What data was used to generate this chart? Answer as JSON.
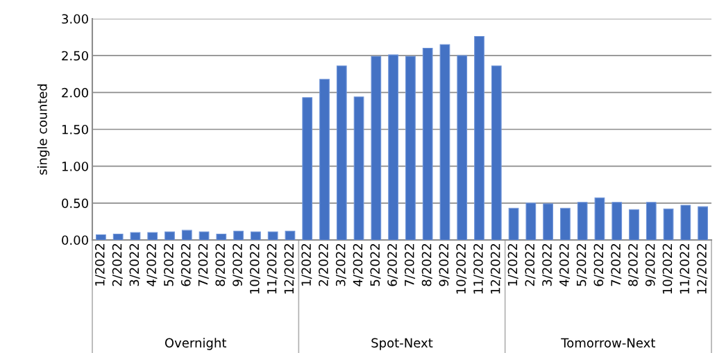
{
  "chart_data": {
    "type": "bar",
    "ylabel": "single counted",
    "color": "#4472c4",
    "categories": [
      "1/2022",
      "2/2022",
      "3/2022",
      "4/2022",
      "5/2022",
      "6/2022",
      "7/2022",
      "8/2022",
      "9/2022",
      "10/2022",
      "11/2022",
      "12/2022",
      "1/2022",
      "2/2022",
      "3/2022",
      "4/2022",
      "5/2022",
      "6/2022",
      "7/2022",
      "8/2022",
      "9/2022",
      "10/2022",
      "11/2022",
      "12/2022",
      "1/2022",
      "2/2022",
      "3/2022",
      "4/2022",
      "5/2022",
      "6/2022",
      "7/2022",
      "8/2022",
      "9/2022",
      "10/2022",
      "11/2022",
      "12/2022"
    ],
    "values": [
      0.07,
      0.08,
      0.1,
      0.1,
      0.11,
      0.13,
      0.11,
      0.08,
      0.12,
      0.11,
      0.11,
      0.12,
      1.93,
      2.18,
      2.36,
      1.94,
      2.49,
      2.51,
      2.49,
      2.6,
      2.65,
      2.5,
      2.76,
      2.36,
      0.43,
      0.5,
      0.49,
      0.43,
      0.51,
      0.57,
      0.51,
      0.41,
      0.51,
      0.42,
      0.47,
      0.45
    ],
    "annotations": [
      "Overnight",
      "Spot-Next",
      "Tomorrow-Next"
    ],
    "ylim": [
      0,
      3
    ],
    "yticks": [
      {
        "value": 0,
        "label": "0.00"
      },
      {
        "value": 0.5,
        "label": "0.50"
      },
      {
        "value": 1,
        "label": "1.00"
      },
      {
        "value": 1.5,
        "label": "1.50"
      },
      {
        "value": 2,
        "label": "2.00"
      },
      {
        "value": 2.5,
        "label": "2.50"
      },
      {
        "value": 3,
        "label": "3.00"
      }
    ],
    "grid": "y"
  }
}
